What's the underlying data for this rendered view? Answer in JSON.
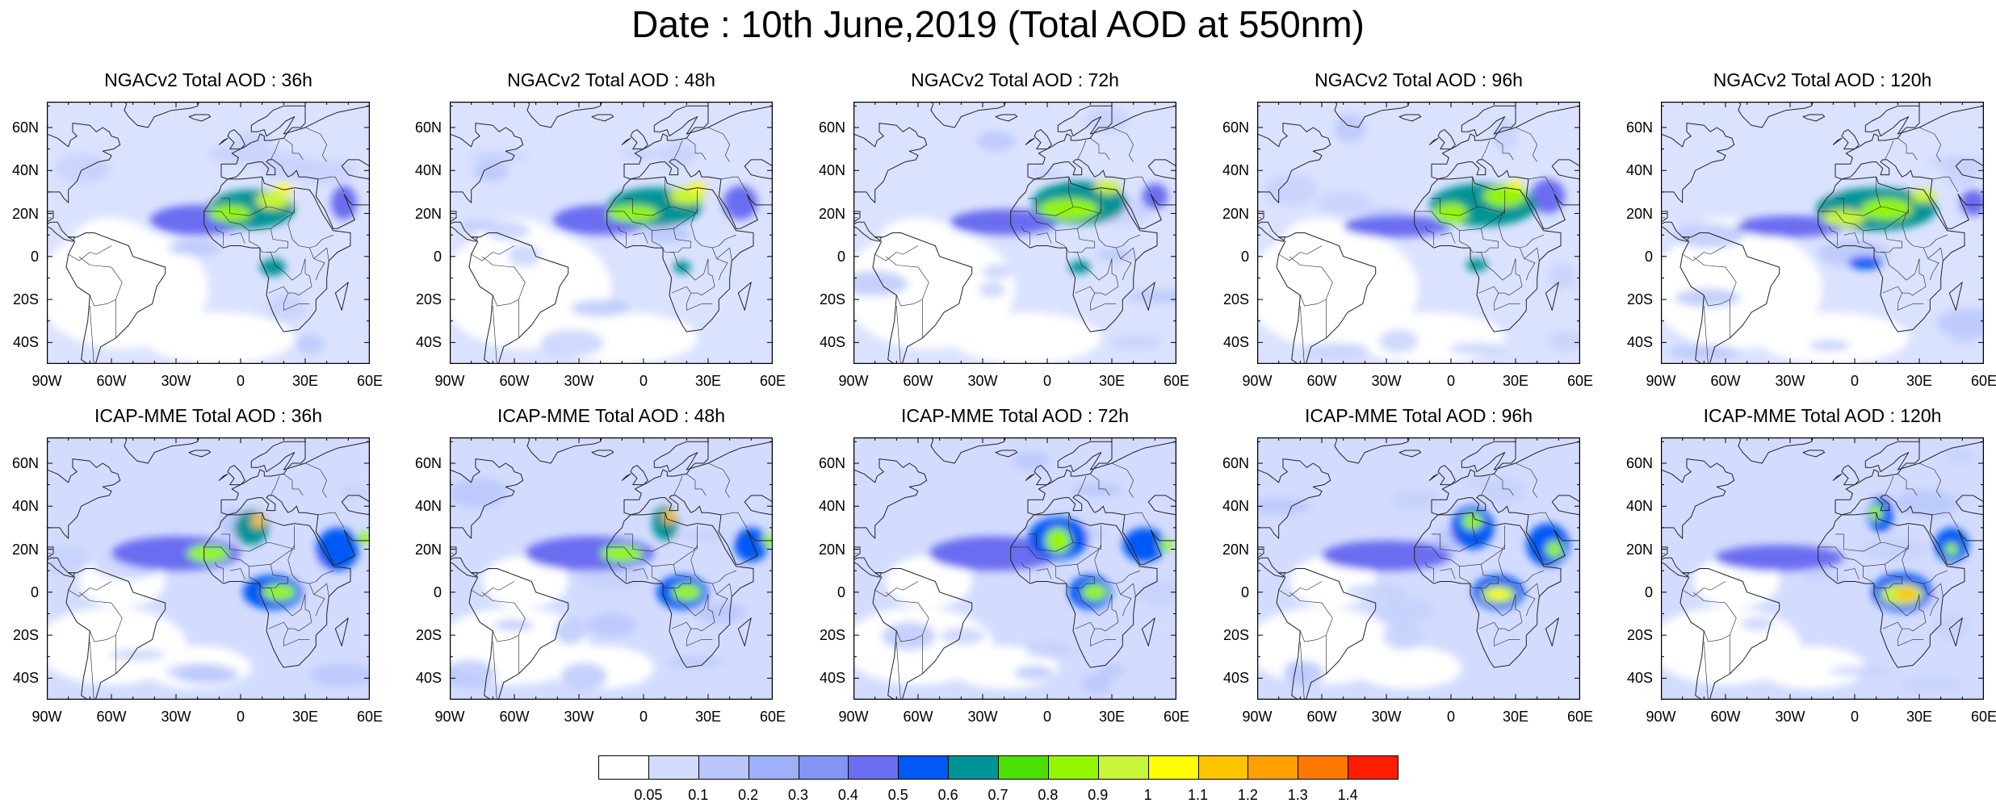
{
  "title": "Date : 10th June,2019 (Total AOD at 550nm)",
  "lat_labels": [
    "60N",
    "40N",
    "20N",
    "0",
    "20S",
    "40S"
  ],
  "lat_values": [
    60,
    40,
    20,
    0,
    -20,
    -40
  ],
  "lon_labels": [
    "90W",
    "60W",
    "30W",
    "0",
    "30E",
    "60E"
  ],
  "lon_values": [
    -90,
    -60,
    -30,
    0,
    30,
    60
  ],
  "extent": {
    "lon": [
      -90,
      60
    ],
    "lat": [
      -50,
      72
    ]
  },
  "panels": [
    {
      "title": "NGACv2 Total AOD : 36h",
      "model": "NGACv2",
      "lead": "36h",
      "plumes": [
        {
          "lon": -20,
          "lat": 17,
          "rlon": 22,
          "rlat": 7,
          "v": 0.45
        },
        {
          "lon": 5,
          "lat": 22,
          "rlon": 20,
          "rlat": 9,
          "v": 0.6
        },
        {
          "lon": -5,
          "lat": 20,
          "rlon": 10,
          "rlat": 4,
          "v": 0.85
        },
        {
          "lon": 15,
          "lat": 26,
          "rlon": 8,
          "rlat": 4,
          "v": 0.9
        },
        {
          "lon": 20,
          "lat": 32,
          "rlon": 4,
          "rlat": 2,
          "v": 1.0
        },
        {
          "lon": 15,
          "lat": -5,
          "rlon": 6,
          "rlat": 4,
          "v": 0.6
        },
        {
          "lon": 48,
          "lat": 25,
          "rlon": 6,
          "rlat": 8,
          "v": 0.45
        }
      ]
    },
    {
      "title": "NGACv2 Total AOD : 48h",
      "model": "NGACv2",
      "lead": "48h",
      "plumes": [
        {
          "lon": -20,
          "lat": 17,
          "rlon": 22,
          "rlat": 7,
          "v": 0.45
        },
        {
          "lon": 5,
          "lat": 23,
          "rlon": 22,
          "rlat": 9,
          "v": 0.6
        },
        {
          "lon": -5,
          "lat": 20,
          "rlon": 12,
          "rlat": 4,
          "v": 0.85
        },
        {
          "lon": 20,
          "lat": 28,
          "rlon": 8,
          "rlat": 4,
          "v": 0.9
        },
        {
          "lon": 25,
          "lat": 32,
          "rlon": 4,
          "rlat": 2,
          "v": 1.0
        },
        {
          "lon": 18,
          "lat": -5,
          "rlon": 4,
          "rlat": 3,
          "v": 0.6
        },
        {
          "lon": 45,
          "lat": 25,
          "rlon": 8,
          "rlat": 8,
          "v": 0.45
        }
      ]
    },
    {
      "title": "NGACv2 Total AOD : 72h",
      "model": "NGACv2",
      "lead": "72h",
      "plumes": [
        {
          "lon": -20,
          "lat": 16,
          "rlon": 25,
          "rlat": 6,
          "v": 0.45
        },
        {
          "lon": 15,
          "lat": 25,
          "rlon": 22,
          "rlat": 10,
          "v": 0.6
        },
        {
          "lon": 10,
          "lat": 22,
          "rlon": 14,
          "rlat": 5,
          "v": 0.85
        },
        {
          "lon": 28,
          "lat": 32,
          "rlon": 6,
          "rlat": 3,
          "v": 0.9
        },
        {
          "lon": 15,
          "lat": -5,
          "rlon": 5,
          "rlat": 3,
          "v": 0.6
        },
        {
          "lon": 50,
          "lat": 28,
          "rlon": 6,
          "rlat": 6,
          "v": 0.45
        }
      ]
    },
    {
      "title": "NGACv2 Total AOD : 96h",
      "model": "NGACv2",
      "lead": "96h",
      "plumes": [
        {
          "lon": -25,
          "lat": 14,
          "rlon": 25,
          "rlat": 5,
          "v": 0.45
        },
        {
          "lon": 15,
          "lat": 24,
          "rlon": 25,
          "rlat": 10,
          "v": 0.6
        },
        {
          "lon": 0,
          "lat": 20,
          "rlon": 8,
          "rlat": 5,
          "v": 0.85
        },
        {
          "lon": 25,
          "lat": 28,
          "rlon": 10,
          "rlat": 5,
          "v": 0.85
        },
        {
          "lon": 30,
          "lat": 33,
          "rlon": 3,
          "rlat": 2,
          "v": 1.0
        },
        {
          "lon": 12,
          "lat": -4,
          "rlon": 5,
          "rlat": 3,
          "v": 0.6
        },
        {
          "lon": 45,
          "lat": 28,
          "rlon": 8,
          "rlat": 8,
          "v": 0.45
        }
      ]
    },
    {
      "title": "NGACv2 Total AOD : 120h",
      "model": "NGACv2",
      "lead": "120h",
      "plumes": [
        {
          "lon": -30,
          "lat": 14,
          "rlon": 25,
          "rlat": 5,
          "v": 0.45
        },
        {
          "lon": 10,
          "lat": 22,
          "rlon": 28,
          "rlat": 10,
          "v": 0.6
        },
        {
          "lon": -5,
          "lat": 18,
          "rlon": 10,
          "rlat": 4,
          "v": 0.95
        },
        {
          "lon": 15,
          "lat": 22,
          "rlon": 12,
          "rlat": 5,
          "v": 0.85
        },
        {
          "lon": 32,
          "lat": 28,
          "rlon": 6,
          "rlat": 3,
          "v": 0.9
        },
        {
          "lon": 5,
          "lat": -3,
          "rlon": 8,
          "rlat": 3,
          "v": 0.5
        },
        {
          "lon": 55,
          "lat": 25,
          "rlon": 6,
          "rlat": 6,
          "v": 0.45
        }
      ]
    },
    {
      "title": "ICAP-MME Total AOD : 36h",
      "model": "ICAP-MME",
      "lead": "36h",
      "plumes": [
        {
          "lon": -30,
          "lat": 18,
          "rlon": 30,
          "rlat": 8,
          "v": 0.45
        },
        {
          "lon": -15,
          "lat": 18,
          "rlon": 10,
          "rlat": 4,
          "v": 0.8
        },
        {
          "lon": 5,
          "lat": 30,
          "rlon": 8,
          "rlat": 8,
          "v": 0.6
        },
        {
          "lon": 8,
          "lat": 33,
          "rlon": 3,
          "rlat": 3,
          "v": 1.1
        },
        {
          "lon": 15,
          "lat": 0,
          "rlon": 14,
          "rlat": 8,
          "v": 0.55
        },
        {
          "lon": 18,
          "lat": 0,
          "rlon": 8,
          "rlat": 4,
          "v": 0.85
        },
        {
          "lon": 45,
          "lat": 20,
          "rlon": 10,
          "rlat": 10,
          "v": 0.5
        },
        {
          "lon": 57,
          "lat": 25,
          "rlon": 3,
          "rlat": 3,
          "v": 0.8
        }
      ]
    },
    {
      "title": "ICAP-MME Total AOD : 48h",
      "model": "ICAP-MME",
      "lead": "48h",
      "plumes": [
        {
          "lon": -25,
          "lat": 18,
          "rlon": 30,
          "rlat": 8,
          "v": 0.45
        },
        {
          "lon": -10,
          "lat": 18,
          "rlon": 10,
          "rlat": 4,
          "v": 0.8
        },
        {
          "lon": 10,
          "lat": 32,
          "rlon": 6,
          "rlat": 8,
          "v": 0.6
        },
        {
          "lon": 12,
          "lat": 35,
          "rlon": 3,
          "rlat": 3,
          "v": 1.1
        },
        {
          "lon": 18,
          "lat": 0,
          "rlon": 12,
          "rlat": 8,
          "v": 0.55
        },
        {
          "lon": 20,
          "lat": 0,
          "rlon": 7,
          "rlat": 4,
          "v": 0.85
        },
        {
          "lon": 50,
          "lat": 22,
          "rlon": 8,
          "rlat": 8,
          "v": 0.5
        },
        {
          "lon": 58,
          "lat": 24,
          "rlon": 3,
          "rlat": 3,
          "v": 0.8
        }
      ]
    },
    {
      "title": "ICAP-MME Total AOD : 72h",
      "model": "ICAP-MME",
      "lead": "72h",
      "plumes": [
        {
          "lon": -25,
          "lat": 18,
          "rlon": 30,
          "rlat": 8,
          "v": 0.45
        },
        {
          "lon": 5,
          "lat": 25,
          "rlon": 14,
          "rlat": 10,
          "v": 0.55
        },
        {
          "lon": 5,
          "lat": 24,
          "rlon": 6,
          "rlat": 6,
          "v": 0.85
        },
        {
          "lon": 20,
          "lat": 0,
          "rlon": 10,
          "rlat": 8,
          "v": 0.55
        },
        {
          "lon": 22,
          "lat": 0,
          "rlon": 6,
          "rlat": 4,
          "v": 0.85
        },
        {
          "lon": 45,
          "lat": 22,
          "rlon": 10,
          "rlat": 8,
          "v": 0.55
        },
        {
          "lon": 55,
          "lat": 22,
          "rlon": 3,
          "rlat": 3,
          "v": 0.8
        }
      ]
    },
    {
      "title": "ICAP-MME Total AOD : 96h",
      "model": "ICAP-MME",
      "lead": "96h",
      "plumes": [
        {
          "lon": -30,
          "lat": 17,
          "rlon": 30,
          "rlat": 7,
          "v": 0.45
        },
        {
          "lon": 10,
          "lat": 30,
          "rlon": 10,
          "rlat": 10,
          "v": 0.55
        },
        {
          "lon": 10,
          "lat": 33,
          "rlon": 5,
          "rlat": 4,
          "v": 0.85
        },
        {
          "lon": 22,
          "lat": 0,
          "rlon": 12,
          "rlat": 8,
          "v": 0.55
        },
        {
          "lon": 22,
          "lat": -1,
          "rlon": 8,
          "rlat": 4,
          "v": 0.9
        },
        {
          "lon": 22,
          "lat": -1,
          "rlon": 4,
          "rlat": 2,
          "v": 1.0
        },
        {
          "lon": 45,
          "lat": 22,
          "rlon": 10,
          "rlat": 10,
          "v": 0.55
        },
        {
          "lon": 48,
          "lat": 20,
          "rlon": 4,
          "rlat": 4,
          "v": 0.8
        }
      ]
    },
    {
      "title": "ICAP-MME Total AOD : 120h",
      "model": "ICAP-MME",
      "lead": "120h",
      "plumes": [
        {
          "lon": -35,
          "lat": 16,
          "rlon": 30,
          "rlat": 6,
          "v": 0.45
        },
        {
          "lon": 12,
          "lat": 36,
          "rlon": 6,
          "rlat": 8,
          "v": 0.55
        },
        {
          "lon": 10,
          "lat": 37,
          "rlon": 3,
          "rlat": 4,
          "v": 0.85
        },
        {
          "lon": 22,
          "lat": 0,
          "rlon": 14,
          "rlat": 9,
          "v": 0.55
        },
        {
          "lon": 22,
          "lat": -1,
          "rlon": 10,
          "rlat": 5,
          "v": 0.9
        },
        {
          "lon": 24,
          "lat": -1,
          "rlon": 5,
          "rlat": 3,
          "v": 1.1
        },
        {
          "lon": 45,
          "lat": 22,
          "rlon": 8,
          "rlat": 8,
          "v": 0.55
        },
        {
          "lon": 45,
          "lat": 20,
          "rlon": 3,
          "rlat": 3,
          "v": 0.85
        }
      ]
    }
  ],
  "colorbar": {
    "colors": [
      "#ffffff",
      "#d3dcff",
      "#b8c6fb",
      "#9db0f8",
      "#8295f5",
      "#6a6df0",
      "#0058f5",
      "#009496",
      "#4ce000",
      "#94f500",
      "#c8f535",
      "#ffff00",
      "#ffc400",
      "#ffa000",
      "#ff7800",
      "#ff1e00"
    ],
    "levels": [
      "0.05",
      "0.1",
      "0.2",
      "0.3",
      "0.4",
      "0.5",
      "0.6",
      "0.7",
      "0.8",
      "0.9",
      "1",
      "1.1",
      "1.2",
      "1.3",
      "1.4"
    ]
  }
}
